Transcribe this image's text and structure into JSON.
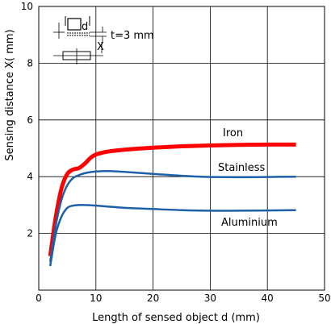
{
  "chart_data": {
    "type": "line",
    "title": "",
    "xlabel": "Length of sensed object d (mm)",
    "ylabel": "Sensing distance X( mm)",
    "xlim": [
      0,
      50
    ],
    "ylim": [
      0,
      10
    ],
    "xticks": [
      0,
      10,
      20,
      30,
      40,
      50
    ],
    "yticks": [
      2,
      4,
      6,
      8,
      10
    ],
    "grid": true,
    "legend": "inline labels",
    "series": [
      {
        "name": "Iron",
        "color": "#ff0000",
        "x": [
          2,
          3,
          4,
          5,
          6,
          7,
          8,
          9,
          10,
          12,
          15,
          20,
          25,
          30,
          35,
          40,
          45
        ],
        "y": [
          1.2,
          2.6,
          3.6,
          4.1,
          4.25,
          4.3,
          4.45,
          4.65,
          4.78,
          4.88,
          4.95,
          5.02,
          5.07,
          5.1,
          5.12,
          5.13,
          5.13
        ]
      },
      {
        "name": "Stainless",
        "color": "#1f5fa8",
        "x": [
          2,
          3,
          4,
          5,
          6,
          7,
          8,
          9,
          10,
          12,
          15,
          20,
          25,
          30,
          35,
          40,
          45
        ],
        "y": [
          1.0,
          2.3,
          3.2,
          3.7,
          3.95,
          4.05,
          4.12,
          4.16,
          4.18,
          4.2,
          4.17,
          4.1,
          4.03,
          3.99,
          3.98,
          3.99,
          4.0
        ]
      },
      {
        "name": "Aluminium",
        "color": "#1f5fa8",
        "x": [
          2,
          3,
          4,
          5,
          6,
          7,
          8,
          10,
          12,
          15,
          20,
          25,
          30,
          35,
          40,
          45
        ],
        "y": [
          0.85,
          2.0,
          2.6,
          2.9,
          2.98,
          3.0,
          3.0,
          2.98,
          2.95,
          2.9,
          2.86,
          2.82,
          2.8,
          2.8,
          2.81,
          2.82
        ]
      }
    ],
    "annotations": {
      "square_label": "d",
      "thickness": "t=3 mm",
      "x_marker": "X"
    }
  }
}
